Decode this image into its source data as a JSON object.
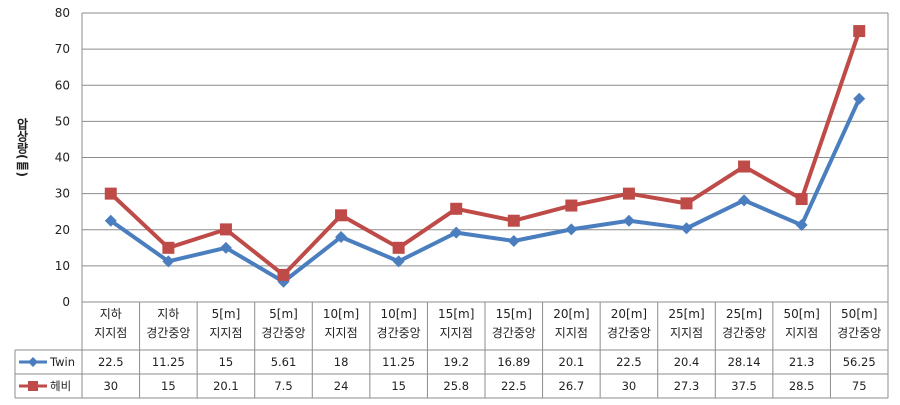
{
  "chart_data": {
    "type": "line",
    "ylabel": "압상량(㎜)",
    "ylim": [
      0,
      80
    ],
    "yticks": [
      0,
      10,
      20,
      30,
      40,
      50,
      60,
      70,
      80
    ],
    "grid": true,
    "legend_placement": "data-table-left",
    "categories": [
      [
        "지하",
        "지지점"
      ],
      [
        "지하",
        "경간중앙"
      ],
      [
        "5[m]",
        "지지점"
      ],
      [
        "5[m]",
        "경간중앙"
      ],
      [
        "10[m]",
        "지지점"
      ],
      [
        "10[m]",
        "경간중앙"
      ],
      [
        "15[m]",
        "지지점"
      ],
      [
        "15[m]",
        "경간중앙"
      ],
      [
        "20[m]",
        "지지점"
      ],
      [
        "20[m]",
        "경간중앙"
      ],
      [
        "25[m]",
        "지지점"
      ],
      [
        "25[m]",
        "경간중앙"
      ],
      [
        "50[m]",
        "지지점"
      ],
      [
        "50[m]",
        "경간중앙"
      ]
    ],
    "series": [
      {
        "name": "Twin",
        "color": "#4a7ebf",
        "marker": "diamond",
        "values": [
          22.5,
          11.25,
          15,
          5.61,
          18,
          11.25,
          19.2,
          16.89,
          20.1,
          22.5,
          20.4,
          28.14,
          21.3,
          56.25
        ],
        "labels": [
          "22.5",
          "11.25",
          "15",
          "5.61",
          "18",
          "11.25",
          "19.2",
          "16.89",
          "20.1",
          "22.5",
          "20.4",
          "28.14",
          "21.3",
          "56.25"
        ]
      },
      {
        "name": "헤비",
        "color": "#be4b48",
        "marker": "square",
        "values": [
          30,
          15,
          20.1,
          7.5,
          24,
          15,
          25.8,
          22.5,
          26.7,
          30,
          27.3,
          37.5,
          28.5,
          75
        ],
        "labels": [
          "30",
          "15",
          "20.1",
          "7.5",
          "24",
          "15",
          "25.8",
          "22.5",
          "26.7",
          "30",
          "27.3",
          "37.5",
          "28.5",
          "75"
        ]
      }
    ]
  }
}
